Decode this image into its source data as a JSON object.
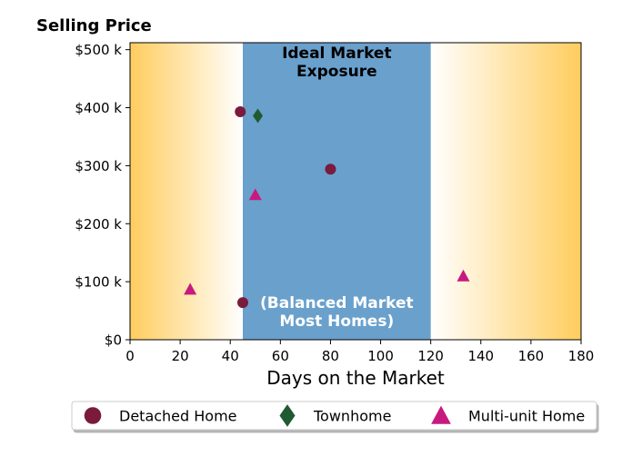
{
  "chart_data": {
    "type": "scatter",
    "title": "Selling Price",
    "xlabel": "Days on the Market",
    "ylabel": "",
    "xlim": [
      0,
      180
    ],
    "ylim": [
      0,
      512000
    ],
    "x_ticks": [
      {
        "value": 0,
        "label": "0"
      },
      {
        "value": 20,
        "label": "20"
      },
      {
        "value": 40,
        "label": "40"
      },
      {
        "value": 60,
        "label": "60"
      },
      {
        "value": 80,
        "label": "80"
      },
      {
        "value": 100,
        "label": "100"
      },
      {
        "value": 120,
        "label": "120"
      },
      {
        "value": 140,
        "label": "140"
      },
      {
        "value": 160,
        "label": "160"
      },
      {
        "value": 180,
        "label": "180"
      }
    ],
    "y_ticks": [
      {
        "value": 0,
        "label": "$0"
      },
      {
        "value": 100000,
        "label": "$100 k"
      },
      {
        "value": 200000,
        "label": "$200 k"
      },
      {
        "value": 300000,
        "label": "$300 k"
      },
      {
        "value": 400000,
        "label": "$400 k"
      },
      {
        "value": 500000,
        "label": "$500 k"
      }
    ],
    "bands": [
      {
        "x_start": 45,
        "x_end": 120,
        "color": "#6aa0cc",
        "label_top": [
          "Ideal Market",
          "Exposure"
        ],
        "label_bottom": [
          "(Balanced Market",
          "Most Homes)"
        ]
      }
    ],
    "background_gradient": {
      "edge_color": "#ffcd5e",
      "center_color": "#ffffff"
    },
    "series": [
      {
        "name": "Detached Home",
        "marker": "circle",
        "color": "#7a1b3d",
        "points": [
          {
            "x": 44,
            "y": 393000
          },
          {
            "x": 80,
            "y": 294000
          },
          {
            "x": 45,
            "y": 64000
          }
        ]
      },
      {
        "name": "Townhome",
        "marker": "diamond",
        "color": "#1f5a32",
        "points": [
          {
            "x": 51,
            "y": 386000
          }
        ]
      },
      {
        "name": "Multi-unit Home",
        "marker": "triangle",
        "color": "#c8197f",
        "points": [
          {
            "x": 50,
            "y": 250000
          },
          {
            "x": 24,
            "y": 87000
          },
          {
            "x": 133,
            "y": 110000
          }
        ]
      }
    ],
    "legend_position": "bottom",
    "grid": false
  }
}
